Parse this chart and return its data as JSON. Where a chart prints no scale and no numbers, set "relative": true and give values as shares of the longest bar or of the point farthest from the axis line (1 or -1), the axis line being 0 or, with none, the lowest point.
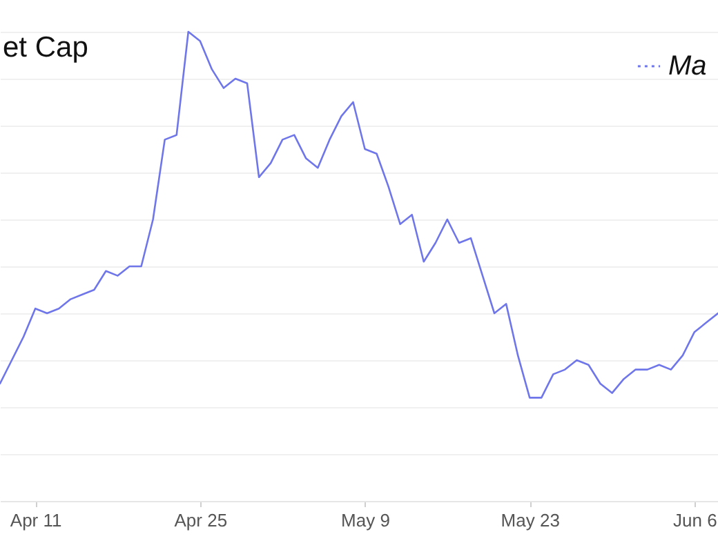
{
  "chart_data": {
    "type": "line",
    "title": "et Cap",
    "relative": true,
    "x": [
      "--04-08",
      "--04-09",
      "--04-10",
      "--04-11",
      "--04-12",
      "--04-13",
      "--04-14",
      "--04-15",
      "--04-16",
      "--04-17",
      "--04-18",
      "--04-19",
      "--04-20",
      "--04-21",
      "--04-22",
      "--04-23",
      "--04-24",
      "--04-25",
      "--04-26",
      "--04-27",
      "--04-28",
      "--04-29",
      "--04-30",
      "--05-01",
      "--05-02",
      "--05-03",
      "--05-04",
      "--05-05",
      "--05-06",
      "--05-07",
      "--05-08",
      "--05-09",
      "--05-10",
      "--05-11",
      "--05-12",
      "--05-13",
      "--05-14",
      "--05-15",
      "--05-16",
      "--05-17",
      "--05-18",
      "--05-19",
      "--05-20",
      "--05-21",
      "--05-22",
      "--05-23",
      "--05-24",
      "--05-25",
      "--05-26",
      "--05-27",
      "--05-28",
      "--05-29",
      "--05-30",
      "--05-31",
      "--06-01",
      "--06-02",
      "--06-03",
      "--06-04",
      "--06-05",
      "--06-06",
      "--06-07",
      "--06-08"
    ],
    "series": [
      {
        "name": "Ma",
        "color": "#6f76e9",
        "values": [
          0.25,
          0.3,
          0.35,
          0.41,
          0.4,
          0.41,
          0.43,
          0.44,
          0.45,
          0.49,
          0.48,
          0.5,
          0.5,
          0.6,
          0.77,
          0.78,
          1.0,
          0.98,
          0.92,
          0.88,
          0.9,
          0.89,
          0.69,
          0.72,
          0.77,
          0.78,
          0.73,
          0.71,
          0.77,
          0.82,
          0.85,
          0.75,
          0.74,
          0.67,
          0.59,
          0.61,
          0.51,
          0.55,
          0.6,
          0.55,
          0.56,
          0.48,
          0.4,
          0.42,
          0.31,
          0.22,
          0.22,
          0.27,
          0.28,
          0.3,
          0.29,
          0.25,
          0.23,
          0.26,
          0.28,
          0.28,
          0.29,
          0.28,
          0.31,
          0.36,
          0.38,
          0.4
        ]
      }
    ],
    "xlim": [
      "--04-08",
      "--06-08"
    ],
    "xticks": [
      {
        "value": "--04-11",
        "label": "Apr 11"
      },
      {
        "value": "--04-25",
        "label": "Apr 25"
      },
      {
        "value": "--05-09",
        "label": "May 9"
      },
      {
        "value": "--05-23",
        "label": "May 23"
      },
      {
        "value": "--06-06",
        "label": "Jun 6"
      }
    ],
    "grid": "y",
    "legend": "top right",
    "tick_labels": "x"
  }
}
